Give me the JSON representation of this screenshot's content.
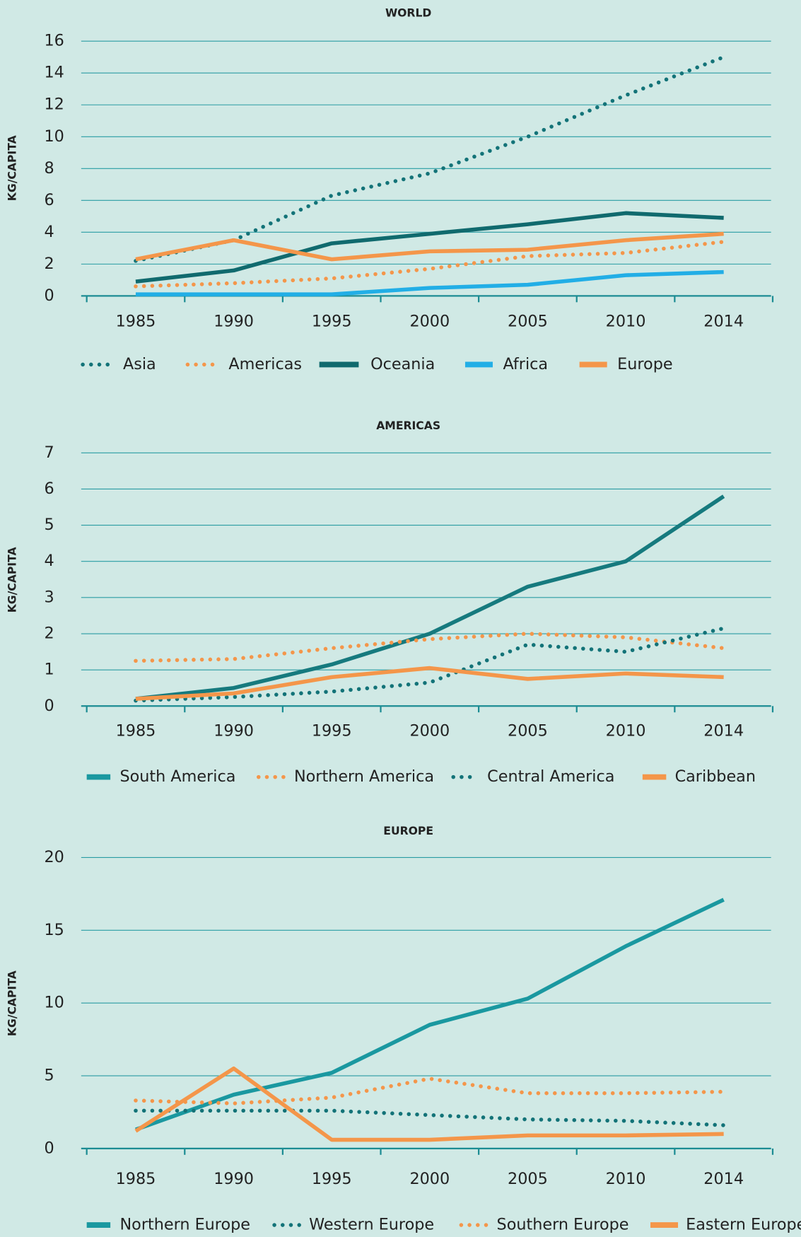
{
  "chart_data": [
    {
      "type": "line",
      "title": "WORLD",
      "ylabel": "KG/CAPITA",
      "categories": [
        "1985",
        "1990",
        "1995",
        "2000",
        "2005",
        "2010",
        "2014"
      ],
      "ylim": [
        0,
        16
      ],
      "yticks": [
        0,
        2,
        4,
        6,
        8,
        10,
        12,
        14,
        16
      ],
      "grid": true,
      "series": [
        {
          "name": "Asia",
          "color": "#137378",
          "style": "dotted",
          "values": [
            2.2,
            3.5,
            6.3,
            7.7,
            10,
            12.6,
            15
          ]
        },
        {
          "name": "Americas",
          "color": "#f4964a",
          "style": "dotted",
          "values": [
            0.6,
            0.8,
            1.1,
            1.7,
            2.5,
            2.7,
            3.4
          ]
        },
        {
          "name": "Oceania",
          "color": "#106a6e",
          "style": "solid",
          "values": [
            0.9,
            1.6,
            3.3,
            3.9,
            4.5,
            5.2,
            4.9
          ]
        },
        {
          "name": "Africa",
          "color": "#22aee6",
          "style": "solid",
          "values": [
            0.1,
            0.1,
            0.1,
            0.5,
            0.7,
            1.3,
            1.5
          ]
        },
        {
          "name": "Europe",
          "color": "#f4964a",
          "style": "solid",
          "values": [
            2.3,
            3.5,
            2.3,
            2.8,
            2.9,
            3.5,
            3.9
          ]
        }
      ]
    },
    {
      "type": "line",
      "title": "AMERICAS",
      "ylabel": "KG/CAPITA",
      "categories": [
        "1985",
        "1990",
        "1995",
        "2000",
        "2005",
        "2010",
        "2014"
      ],
      "ylim": [
        0,
        7
      ],
      "yticks": [
        0,
        1,
        2,
        3,
        4,
        5,
        6,
        7
      ],
      "grid": true,
      "series": [
        {
          "name": "South America",
          "color": "#167a7e",
          "legend_color": "#1a98a0",
          "style": "solid",
          "values": [
            0.2,
            0.5,
            1.15,
            2.0,
            3.3,
            4.0,
            5.8
          ]
        },
        {
          "name": "Northern America",
          "color": "#f4964a",
          "style": "dotted",
          "values": [
            1.25,
            1.3,
            1.6,
            1.85,
            2.0,
            1.9,
            1.6
          ]
        },
        {
          "name": "Central America",
          "color": "#137378",
          "style": "dotted",
          "values": [
            0.15,
            0.25,
            0.4,
            0.65,
            1.7,
            1.5,
            2.15
          ]
        },
        {
          "name": "Caribbean",
          "color": "#f4964a",
          "style": "solid",
          "values": [
            0.2,
            0.35,
            0.8,
            1.05,
            0.75,
            0.9,
            0.8
          ]
        }
      ]
    },
    {
      "type": "line",
      "title": "EUROPE",
      "ylabel": "KG/CAPITA",
      "categories": [
        "1985",
        "1990",
        "1995",
        "2000",
        "2005",
        "2010",
        "2014"
      ],
      "ylim": [
        0,
        20
      ],
      "yticks": [
        0,
        5,
        10,
        15,
        20
      ],
      "grid": true,
      "series": [
        {
          "name": "Northern Europe",
          "color": "#1a98a0",
          "style": "solid",
          "values": [
            1.3,
            3.7,
            5.2,
            8.5,
            10.3,
            13.9,
            17.1
          ]
        },
        {
          "name": "Western Europe",
          "color": "#137378",
          "style": "dotted",
          "values": [
            2.6,
            2.6,
            2.6,
            2.3,
            2.0,
            1.9,
            1.6
          ]
        },
        {
          "name": "Southern Europe",
          "color": "#f4964a",
          "style": "dotted",
          "values": [
            3.3,
            3.1,
            3.5,
            4.8,
            3.8,
            3.8,
            3.9
          ]
        },
        {
          "name": "Eastern Europe",
          "color": "#f4964a",
          "style": "solid",
          "values": [
            1.2,
            5.5,
            0.6,
            0.6,
            0.9,
            0.9,
            1.0
          ]
        }
      ]
    }
  ]
}
